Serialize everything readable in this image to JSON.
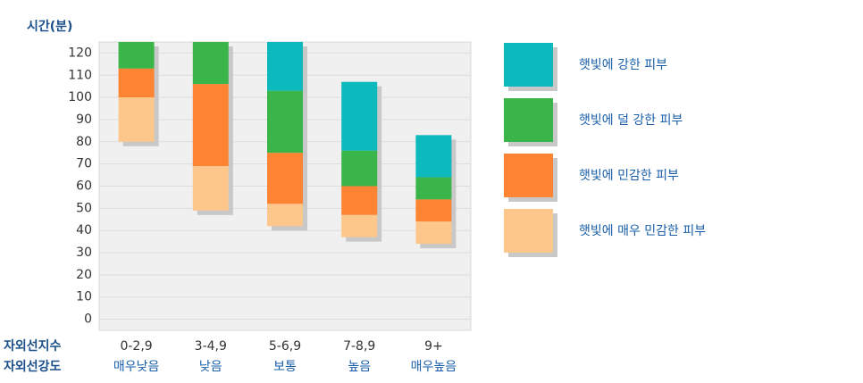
{
  "chart_data": {
    "type": "floating-bar",
    "y_axis_label": "시간(분)",
    "row_labels": [
      "자외선지수",
      "자외선강도"
    ],
    "categories": [
      "0-2,9",
      "3-4,9",
      "5-6,9",
      "7-8,9",
      "9+"
    ],
    "category_sublabels": [
      "매우낮음",
      "낮음",
      "보통",
      "높음",
      "매우높음"
    ],
    "series": [
      {
        "name": "햇빛에 강한 피부",
        "color": "#0cb9bc",
        "values": [
          null,
          null,
          [
            103,
            125
          ],
          [
            76,
            107
          ],
          [
            64,
            83
          ]
        ]
      },
      {
        "name": "햇빛에 덜 강한 피부",
        "color": "#3ab54a",
        "values": [
          [
            113,
            125
          ],
          [
            106,
            125
          ],
          [
            75,
            103
          ],
          [
            60,
            76
          ],
          [
            54,
            64
          ]
        ]
      },
      {
        "name": "햇빛에 민감한 피부",
        "color": "#fd8433",
        "values": [
          [
            100,
            113
          ],
          [
            69,
            106
          ],
          [
            52,
            75
          ],
          [
            47,
            60
          ],
          [
            44,
            54
          ]
        ]
      },
      {
        "name": "햇빛에 매우 민감한 피부",
        "color": "#fdc78c",
        "values": [
          [
            80,
            100
          ],
          [
            49,
            69
          ],
          [
            42,
            52
          ],
          [
            37,
            47
          ],
          [
            34,
            44
          ]
        ]
      }
    ],
    "ylim": [
      -5,
      125
    ],
    "yticks": [
      0,
      10,
      20,
      30,
      40,
      50,
      60,
      70,
      80,
      90,
      100,
      110,
      120
    ],
    "grid": true
  }
}
